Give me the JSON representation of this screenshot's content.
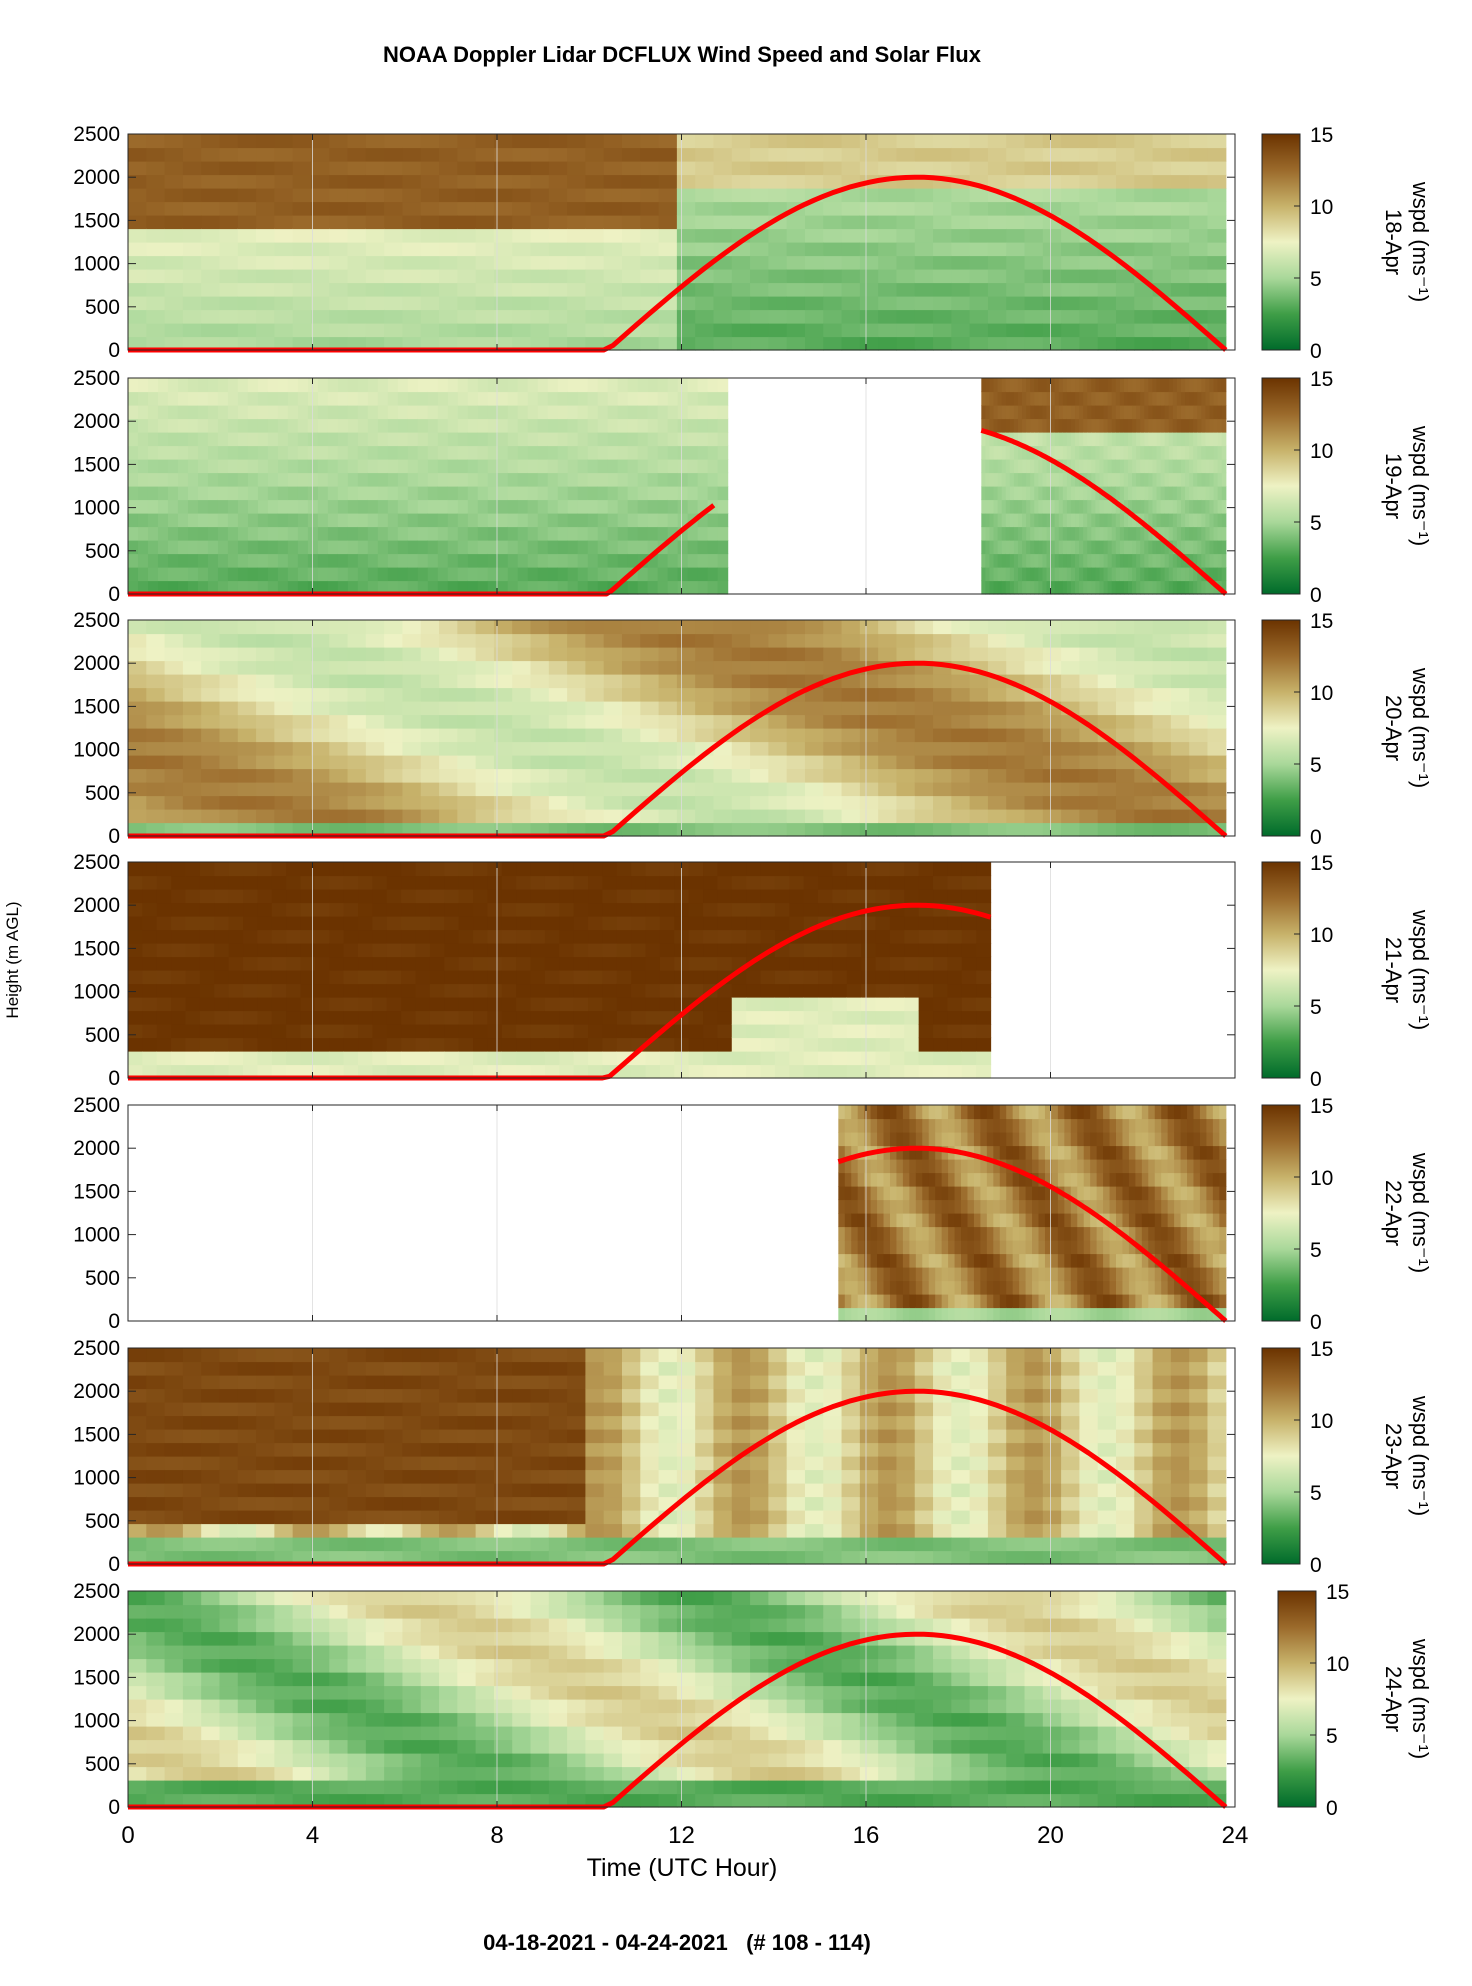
{
  "figure": {
    "title": "NOAA Doppler Lidar DCFLUX Wind Speed and Solar Flux",
    "footer": "04-18-2021 - 04-24-2021   (# 108 - 114)",
    "xlabel": "Time (UTC Hour)",
    "ylabel": "Height (m AGL)"
  },
  "colors": {
    "solar_flux_line": "#ff0000",
    "colormap": [
      "#006b2b",
      "#3f9e47",
      "#a9d89a",
      "#eef2c4",
      "#c7b26a",
      "#9b6a2b",
      "#6b3300"
    ]
  },
  "chart_data": {
    "type": "heatmap",
    "x": {
      "label": "Time (UTC Hour)",
      "lim": [
        0,
        24
      ],
      "ticks": [
        0,
        4,
        8,
        12,
        16,
        20,
        24
      ],
      "grid": true
    },
    "y": {
      "label": "Height (m AGL)",
      "lim": [
        0,
        2500
      ],
      "ticks": [
        0,
        500,
        1000,
        1500,
        2000,
        2500
      ]
    },
    "colorbar": {
      "label": "wspd (ms⁻¹)",
      "lim": [
        0,
        15
      ],
      "ticks": [
        0,
        5,
        10,
        15
      ]
    },
    "overlay": {
      "series": "solar flux",
      "sunrise_hour": 10.4,
      "sunset_hour": 23.8,
      "peak_height": 2000
    },
    "panels": [
      {
        "day": "18-Apr",
        "data_ranges": [
          [
            0,
            23.8
          ]
        ],
        "flux_ranges": [
          [
            0,
            23.8
          ]
        ]
      },
      {
        "day": "19-Apr",
        "data_ranges": [
          [
            0,
            13.0
          ],
          [
            18.5,
            23.8
          ]
        ],
        "flux_ranges": [
          [
            0,
            12.7
          ],
          [
            18.5,
            23.8
          ]
        ]
      },
      {
        "day": "20-Apr",
        "data_ranges": [
          [
            0,
            23.8
          ]
        ],
        "flux_ranges": [
          [
            0,
            23.8
          ]
        ]
      },
      {
        "day": "21-Apr",
        "data_ranges": [
          [
            0,
            18.7
          ]
        ],
        "flux_ranges": [
          [
            0,
            18.7
          ]
        ]
      },
      {
        "day": "22-Apr",
        "data_ranges": [
          [
            15.4,
            23.8
          ]
        ],
        "flux_ranges": [
          [
            15.4,
            23.8
          ]
        ]
      },
      {
        "day": "23-Apr",
        "data_ranges": [
          [
            0,
            23.8
          ]
        ],
        "flux_ranges": [
          [
            0,
            23.8
          ]
        ]
      },
      {
        "day": "24-Apr",
        "data_ranges": [
          [
            0,
            23.8
          ]
        ],
        "flux_ranges": [
          [
            0,
            23.8
          ]
        ]
      }
    ]
  }
}
